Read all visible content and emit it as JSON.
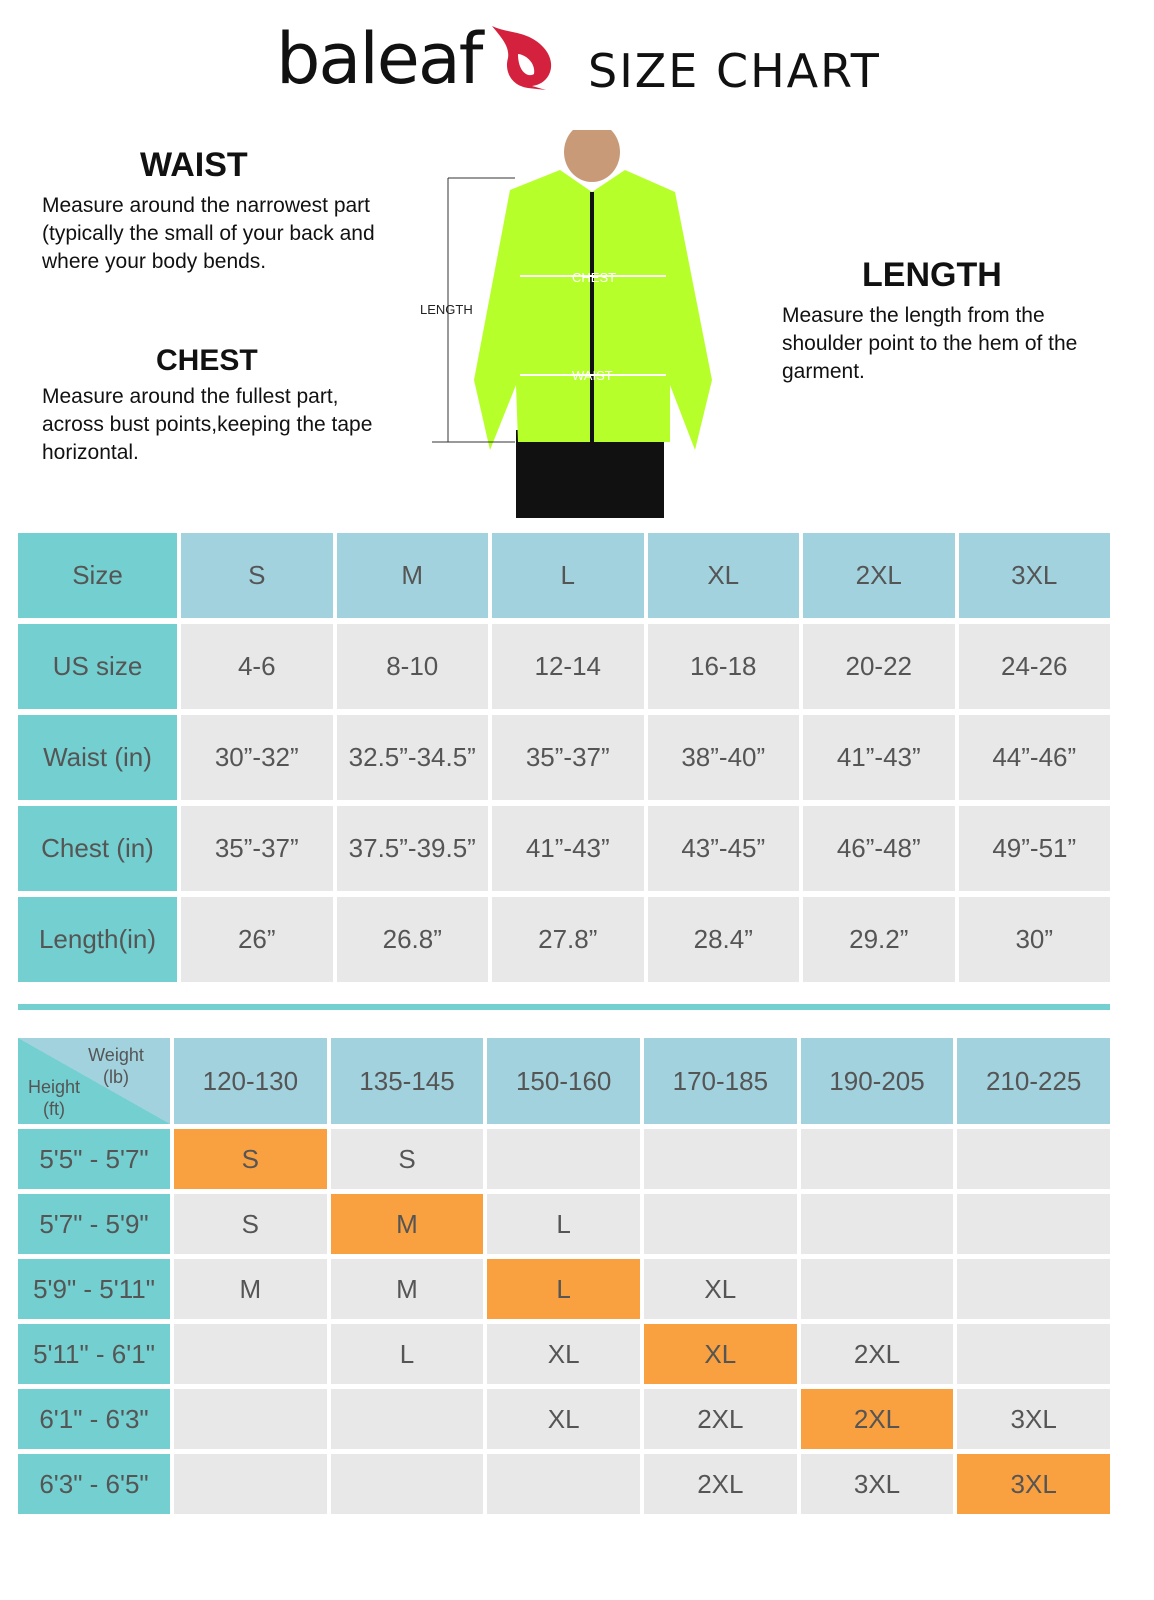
{
  "header": {
    "brand": "baleaf",
    "title": "SIZE CHART",
    "logo_color": "#d4213d"
  },
  "guide": {
    "waist": {
      "title": "WAIST",
      "text": "Measure around the narrowest part (typically the small of your back and where your body bends."
    },
    "chest": {
      "title": "CHEST",
      "text": "Measure around the fullest part, across bust points,keeping the tape horizontal."
    },
    "length": {
      "title": "LENGTH",
      "text": "Measure the length from the shoulder point to the hem of the garment."
    },
    "image_labels": {
      "length": "LENGTH",
      "chest": "CHEST",
      "waist": "WAIST"
    }
  },
  "size_table": {
    "header": [
      "Size",
      "S",
      "M",
      "L",
      "XL",
      "2XL",
      "3XL"
    ],
    "rows": [
      [
        "US size",
        "4-6",
        "8-10",
        "12-14",
        "16-18",
        "20-22",
        "24-26"
      ],
      [
        "Waist (in)",
        "30”-32”",
        "32.5”-34.5”",
        "35”-37”",
        "38”-40”",
        "41”-43”",
        "44”-46”"
      ],
      [
        "Chest (in)",
        "35”-37”",
        "37.5”-39.5”",
        "41”-43”",
        "43”-45”",
        "46”-48”",
        "49”-51”"
      ],
      [
        "Length(in)",
        "26”",
        "26.8”",
        "27.8”",
        "28.4”",
        "29.2”",
        "30”"
      ]
    ]
  },
  "fit_table": {
    "corner": {
      "weight": "Weight (lb)",
      "height": "Height (ft)"
    },
    "weights": [
      "120-130",
      "135-145",
      "150-160",
      "170-185",
      "190-205",
      "210-225"
    ],
    "rows": [
      {
        "height": "5'5\" - 5'7\"",
        "cells": [
          "S",
          "S",
          "",
          "",
          "",
          ""
        ],
        "highlight": 0
      },
      {
        "height": "5'7\" - 5'9\"",
        "cells": [
          "S",
          "M",
          "L",
          "",
          "",
          ""
        ],
        "highlight": 1
      },
      {
        "height": "5'9\" - 5'11\"",
        "cells": [
          "M",
          "M",
          "L",
          "XL",
          "",
          ""
        ],
        "highlight": 2
      },
      {
        "height": "5'11\" - 6'1\"",
        "cells": [
          "",
          "L",
          "XL",
          "XL",
          "2XL",
          ""
        ],
        "highlight": 3
      },
      {
        "height": "6'1\" - 6'3\"",
        "cells": [
          "",
          "",
          "XL",
          "2XL",
          "2XL",
          "3XL"
        ],
        "highlight": 4
      },
      {
        "height": "6'3\" - 6'5\"",
        "cells": [
          "",
          "",
          "",
          "2XL",
          "3XL",
          "3XL"
        ],
        "highlight": 5
      }
    ]
  },
  "colors": {
    "label": "#74cfd0",
    "header": "#a3d2df",
    "cell": "#e8e8e8",
    "highlight": "#f9a040",
    "jacket": "#b6ff2a"
  }
}
